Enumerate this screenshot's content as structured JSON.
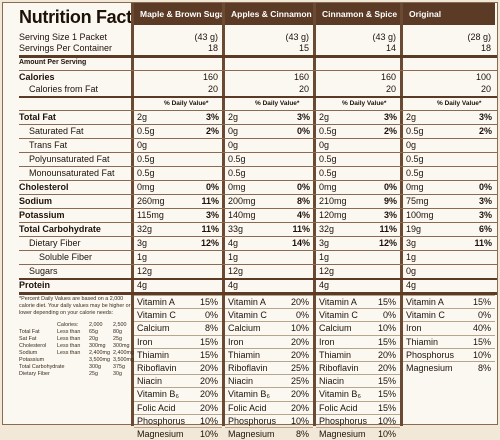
{
  "title": "Nutrition Facts",
  "columns": [
    "Maple & Brown Sugar",
    "Apples & Cinnamon",
    "Cinnamon & Spice",
    "Original"
  ],
  "serving": {
    "size_label": "Serving Size 1 Packet",
    "container_label": "Servings Per Container",
    "sizes": [
      "(43 g)",
      "(43 g)",
      "(43 g)",
      "(28 g)"
    ],
    "counts": [
      "18",
      "15",
      "14",
      "18"
    ]
  },
  "amount_label": "Amount Per Serving",
  "calories": {
    "label": "Calories",
    "values": [
      "160",
      "160",
      "160",
      "100"
    ],
    "fat_label": "Calories from Fat",
    "fat_values": [
      "20",
      "20",
      "20",
      "20"
    ]
  },
  "dv_header": "% Daily Value*",
  "nutrients": [
    {
      "label": "Total Fat",
      "style": "b",
      "values": [
        "2g",
        "2g",
        "2g",
        "2g"
      ],
      "pct": [
        "3%",
        "3%",
        "3%",
        "3%"
      ],
      "rule": "med"
    },
    {
      "label": "Saturated Fat",
      "style": "i1",
      "values": [
        "0.5g",
        "0g",
        "0.5g",
        "0.5g"
      ],
      "pct": [
        "2%",
        "0%",
        "2%",
        "2%"
      ]
    },
    {
      "label": "Trans Fat",
      "style": "i1",
      "values": [
        "0g",
        "0g",
        "0g",
        "0g"
      ],
      "pct": [
        "",
        "",
        "",
        ""
      ]
    },
    {
      "label": "Polyunsaturated Fat",
      "style": "i1",
      "values": [
        "0.5g",
        "0.5g",
        "0.5g",
        "0.5g"
      ],
      "pct": [
        "",
        "",
        "",
        ""
      ]
    },
    {
      "label": "Monounsaturated Fat",
      "style": "i1",
      "values": [
        "0.5g",
        "0.5g",
        "0.5g",
        "0.5g"
      ],
      "pct": [
        "",
        "",
        "",
        ""
      ]
    },
    {
      "label": "Cholesterol",
      "style": "b",
      "values": [
        "0mg",
        "0mg",
        "0mg",
        "0mg"
      ],
      "pct": [
        "0%",
        "0%",
        "0%",
        "0%"
      ]
    },
    {
      "label": "Sodium",
      "style": "b",
      "values": [
        "260mg",
        "200mg",
        "210mg",
        "75mg"
      ],
      "pct": [
        "11%",
        "8%",
        "9%",
        "3%"
      ]
    },
    {
      "label": "Potassium",
      "style": "b",
      "values": [
        "115mg",
        "140mg",
        "120mg",
        "100mg"
      ],
      "pct": [
        "3%",
        "4%",
        "3%",
        "3%"
      ]
    },
    {
      "label": "Total Carbohydrate",
      "style": "b",
      "values": [
        "32g",
        "33g",
        "32g",
        "19g"
      ],
      "pct": [
        "11%",
        "11%",
        "11%",
        "6%"
      ]
    },
    {
      "label": "Dietary Fiber",
      "style": "i1",
      "values": [
        "3g",
        "4g",
        "3g",
        "3g"
      ],
      "pct": [
        "12%",
        "14%",
        "12%",
        "11%"
      ]
    },
    {
      "label": "Soluble Fiber",
      "style": "i2",
      "values": [
        "1g",
        "1g",
        "1g",
        "1g"
      ],
      "pct": [
        "",
        "",
        "",
        ""
      ]
    },
    {
      "label": "Sugars",
      "style": "i1",
      "values": [
        "12g",
        "12g",
        "12g",
        "0g"
      ],
      "pct": [
        "",
        "",
        "",
        ""
      ]
    },
    {
      "label": "Protein",
      "style": "b",
      "values": [
        "4g",
        "4g",
        "4g",
        "4g"
      ],
      "pct": [
        "",
        "",
        "",
        ""
      ],
      "rule": "thick"
    }
  ],
  "footnote": {
    "text": "*Percent Daily Values are based on a 2,000 calorie diet. Your daily values may be higher or lower depending on your calorie needs:",
    "header": [
      "",
      "Calories:",
      "2,000",
      "2,500"
    ],
    "rows": [
      [
        "Total Fat",
        "Less than",
        "65g",
        "80g"
      ],
      [
        "Sat Fat",
        "Less than",
        "20g",
        "25g"
      ],
      [
        "Cholesterol",
        "Less than",
        "300mg",
        "300mg"
      ],
      [
        "Sodium",
        "Less than",
        "2,400mg",
        "2,400mg"
      ],
      [
        "Potassium",
        "",
        "3,500mg",
        "3,500mg"
      ],
      [
        "Total Carbohydrate",
        "",
        "300g",
        "375g"
      ],
      [
        "Dietary Fiber",
        "",
        "25g",
        "30g"
      ]
    ]
  },
  "vitamins": [
    [
      [
        "Vitamin A",
        "15%"
      ],
      [
        "Vitamin C",
        "0%"
      ],
      [
        "Calcium",
        "8%"
      ],
      [
        "Iron",
        "15%"
      ],
      [
        "Thiamin",
        "15%"
      ],
      [
        "Riboflavin",
        "20%"
      ],
      [
        "Niacin",
        "20%"
      ],
      [
        "Vitamin B₆",
        "20%"
      ],
      [
        "Folic Acid",
        "20%"
      ],
      [
        "Phosphorus",
        "10%"
      ],
      [
        "Magnesium",
        "10%"
      ]
    ],
    [
      [
        "Vitamin A",
        "20%"
      ],
      [
        "Vitamin C",
        "0%"
      ],
      [
        "Calcium",
        "10%"
      ],
      [
        "Iron",
        "20%"
      ],
      [
        "Thiamin",
        "20%"
      ],
      [
        "Riboflavin",
        "25%"
      ],
      [
        "Niacin",
        "25%"
      ],
      [
        "Vitamin B₆",
        "20%"
      ],
      [
        "Folic Acid",
        "20%"
      ],
      [
        "Phosphorus",
        "10%"
      ],
      [
        "Magnesium",
        "8%"
      ]
    ],
    [
      [
        "Vitamin A",
        "15%"
      ],
      [
        "Vitamin C",
        "0%"
      ],
      [
        "Calcium",
        "10%"
      ],
      [
        "Iron",
        "15%"
      ],
      [
        "Thiamin",
        "20%"
      ],
      [
        "Riboflavin",
        "20%"
      ],
      [
        "Niacin",
        "15%"
      ],
      [
        "Vitamin B₆",
        "15%"
      ],
      [
        "Folic Acid",
        "15%"
      ],
      [
        "Phosphorus",
        "10%"
      ],
      [
        "Magnesium",
        "10%"
      ]
    ],
    [
      [
        "Vitamin A",
        "15%"
      ],
      [
        "Vitamin C",
        "0%"
      ],
      [
        "Iron",
        "40%"
      ],
      [
        "Thiamin",
        "15%"
      ],
      [
        "Phosphorus",
        "10%"
      ],
      [
        "Magnesium",
        "8%"
      ]
    ]
  ]
}
